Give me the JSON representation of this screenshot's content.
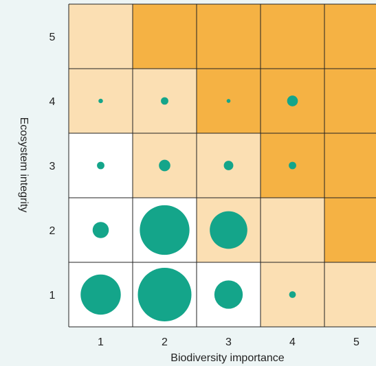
{
  "chart_data": {
    "type": "heatmap",
    "xlabel": "Biodiversity importance",
    "ylabel": "Ecosystem integrity",
    "x_categories": [
      "1",
      "2",
      "3",
      "4",
      "5"
    ],
    "y_categories": [
      "1",
      "2",
      "3",
      "4",
      "5"
    ],
    "cell_colors": {
      "white": "#ffffff",
      "light": "#fbdfb3",
      "dark": "#f5b244"
    },
    "bubble_color": "#14a58a",
    "grid_color": "#222222",
    "cells": [
      {
        "x": 1,
        "y": 5,
        "fill": "light",
        "bubble": 0
      },
      {
        "x": 2,
        "y": 5,
        "fill": "dark",
        "bubble": 0
      },
      {
        "x": 3,
        "y": 5,
        "fill": "dark",
        "bubble": 0
      },
      {
        "x": 4,
        "y": 5,
        "fill": "dark",
        "bubble": 0
      },
      {
        "x": 5,
        "y": 5,
        "fill": "dark",
        "bubble": 0
      },
      {
        "x": 1,
        "y": 4,
        "fill": "light",
        "bubble": 0.4
      },
      {
        "x": 2,
        "y": 4,
        "fill": "light",
        "bubble": 1.1
      },
      {
        "x": 3,
        "y": 4,
        "fill": "dark",
        "bubble": 0.3
      },
      {
        "x": 4,
        "y": 4,
        "fill": "dark",
        "bubble": 2.3
      },
      {
        "x": 5,
        "y": 4,
        "fill": "dark",
        "bubble": 0
      },
      {
        "x": 1,
        "y": 3,
        "fill": "white",
        "bubble": 1.1
      },
      {
        "x": 2,
        "y": 3,
        "fill": "light",
        "bubble": 2.6
      },
      {
        "x": 3,
        "y": 3,
        "fill": "light",
        "bubble": 1.8
      },
      {
        "x": 4,
        "y": 3,
        "fill": "dark",
        "bubble": 1.1
      },
      {
        "x": 5,
        "y": 3,
        "fill": "dark",
        "bubble": 0
      },
      {
        "x": 1,
        "y": 2,
        "fill": "white",
        "bubble": 5.2
      },
      {
        "x": 2,
        "y": 2,
        "fill": "white",
        "bubble": 49
      },
      {
        "x": 3,
        "y": 2,
        "fill": "light",
        "bubble": 28
      },
      {
        "x": 4,
        "y": 2,
        "fill": "light",
        "bubble": 0
      },
      {
        "x": 5,
        "y": 2,
        "fill": "dark",
        "bubble": 0
      },
      {
        "x": 1,
        "y": 1,
        "fill": "white",
        "bubble": 32
      },
      {
        "x": 2,
        "y": 1,
        "fill": "white",
        "bubble": 57
      },
      {
        "x": 3,
        "y": 1,
        "fill": "white",
        "bubble": 16
      },
      {
        "x": 4,
        "y": 1,
        "fill": "light",
        "bubble": 0.9
      },
      {
        "x": 5,
        "y": 1,
        "fill": "light",
        "bubble": 0
      }
    ]
  }
}
